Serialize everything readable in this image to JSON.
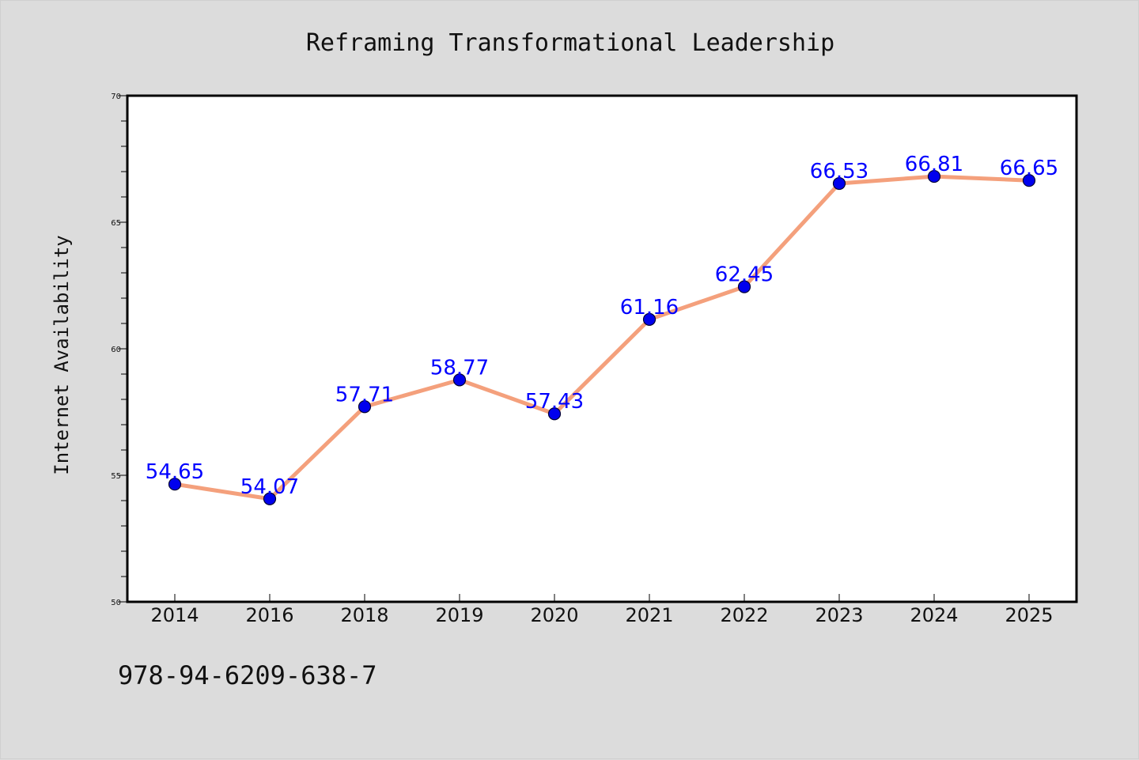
{
  "chart_data": {
    "type": "line",
    "title": "Reframing Transformational Leadership",
    "xlabel": "",
    "ylabel": "Internet Availability",
    "categories": [
      "2014",
      "2016",
      "2018",
      "2019",
      "2020",
      "2021",
      "2022",
      "2023",
      "2024",
      "2025"
    ],
    "values": [
      54.65,
      54.07,
      57.71,
      58.77,
      57.43,
      61.16,
      62.45,
      66.53,
      66.81,
      66.65
    ],
    "data_labels": [
      "54.65",
      "54.07",
      "57.71",
      "58.77",
      "57.43",
      "61.16",
      "62.45",
      "66.53",
      "66.81",
      "66.65"
    ],
    "ylim": [
      50,
      70
    ],
    "yticks": [
      "50",
      "55",
      "60",
      "65",
      "70"
    ],
    "grid": false,
    "colors": {
      "line": "#f4a07c",
      "marker_fill": "#0000ee",
      "marker_stroke": "#000033",
      "data_label": "#0000ff",
      "plot_background": "#ffffff",
      "figure_background": "#dcdcdc"
    }
  },
  "footer": {
    "isbn": "978-94-6209-638-7"
  }
}
